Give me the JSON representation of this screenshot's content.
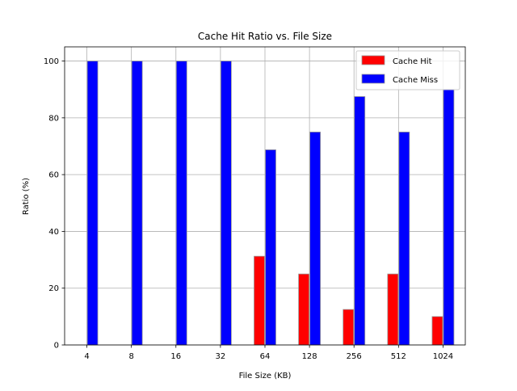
{
  "chart_data": {
    "type": "bar",
    "title": "Cache Hit Ratio vs. File Size",
    "xlabel": "File Size (KB)",
    "ylabel": "Ratio (%)",
    "categories": [
      "4",
      "8",
      "16",
      "32",
      "64",
      "128",
      "256",
      "512",
      "1024"
    ],
    "series": [
      {
        "name": "Cache Hit",
        "color": "#ff0000",
        "values": [
          0,
          0,
          0,
          0,
          31.25,
          25,
          12.5,
          25,
          10
        ]
      },
      {
        "name": "Cache Miss",
        "color": "#0000ff",
        "values": [
          100,
          100,
          100,
          100,
          68.75,
          75,
          87.5,
          75,
          90
        ]
      }
    ],
    "ylim": [
      0,
      105
    ],
    "yticks": [
      0,
      20,
      40,
      60,
      80,
      100
    ],
    "grid": true,
    "legend_position": "top-right"
  }
}
